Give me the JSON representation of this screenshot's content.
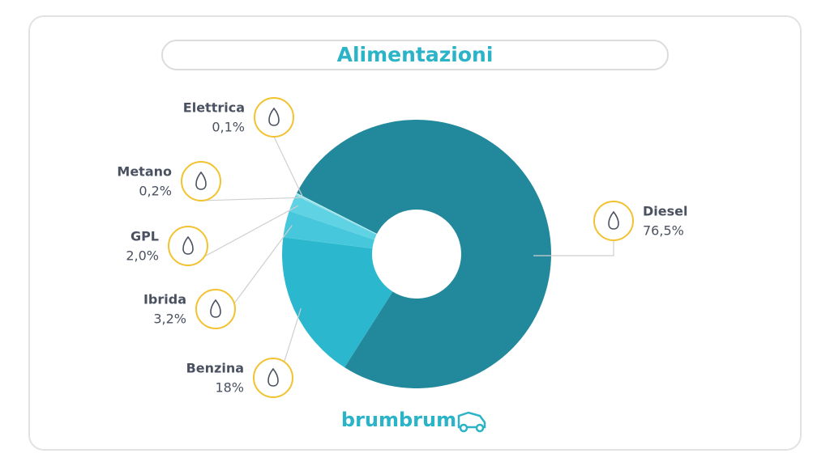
{
  "chart_data": {
    "type": "pie",
    "donut": true,
    "title": "Alimentazioni",
    "brand": "brumbrum",
    "categories": [
      "Diesel",
      "Benzina",
      "Ibrida",
      "GPL",
      "Metano",
      "Elettrica"
    ],
    "values": [
      76.5,
      18,
      3.2,
      2.0,
      0.2,
      0.1
    ],
    "value_labels": [
      "76,5%",
      "18%",
      "3,2%",
      "2,0%",
      "0,2%",
      "0,1%"
    ],
    "colors": [
      "#21899b",
      "#2bb8cf",
      "#46c7db",
      "#5fd2e3",
      "#90e0ea",
      "#bdeff4"
    ]
  }
}
